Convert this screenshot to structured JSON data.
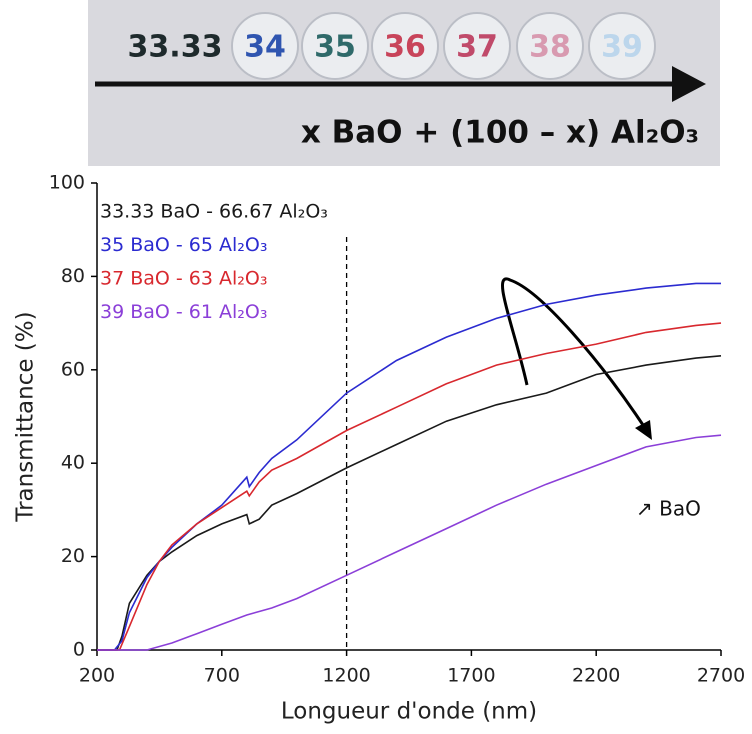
{
  "photo": {
    "labels": [
      "33.33",
      "34",
      "35",
      "36",
      "37",
      "38",
      "39"
    ],
    "colors": [
      "#1e2a2c",
      "#2f55b0",
      "#2f6a6a",
      "#c8445a",
      "#c04a6a",
      "#d89ab0",
      "#bcd6ec"
    ],
    "caption": "x BaO + (100 – x) Al₂O₃"
  },
  "chart_data": {
    "type": "line",
    "xlabel": "Longueur d'onde (nm)",
    "ylabel": "Transmittance (%)",
    "xlim": [
      200,
      2700
    ],
    "ylim": [
      0,
      100
    ],
    "xticks": [
      200,
      700,
      1200,
      1700,
      2200,
      2700
    ],
    "yticks": [
      0,
      20,
      40,
      60,
      80,
      100
    ],
    "vline": 1200,
    "annotation": "↗ BaO",
    "series": [
      {
        "name": "33.33 BaO - 66.67 Al₂O₃",
        "color": "#1a1a1a",
        "x": [
          200,
          280,
          300,
          330,
          400,
          450,
          500,
          600,
          700,
          800,
          810,
          850,
          900,
          1000,
          1200,
          1400,
          1600,
          1800,
          2000,
          2200,
          2400,
          2600,
          2700
        ],
        "values": [
          0,
          0,
          3,
          10,
          16,
          19,
          21,
          24.5,
          27,
          29,
          27,
          28,
          31,
          33.5,
          39,
          44,
          49,
          52.5,
          55,
          59,
          61,
          62.5,
          63
        ]
      },
      {
        "name": "35 BaO - 65 Al₂O₃",
        "color": "#2b2bd0",
        "x": [
          200,
          270,
          300,
          330,
          400,
          450,
          500,
          600,
          700,
          800,
          810,
          850,
          900,
          1000,
          1200,
          1400,
          1600,
          1800,
          2000,
          2200,
          2400,
          2600,
          2700
        ],
        "values": [
          0,
          0,
          2,
          8,
          15.5,
          19,
          22,
          27,
          31,
          37,
          35,
          38,
          41,
          45,
          55,
          62,
          67,
          71,
          74,
          76,
          77.5,
          78.5,
          78.5
        ]
      },
      {
        "name": "37 BaO - 63 Al₂O₃",
        "color": "#d8282e",
        "x": [
          200,
          290,
          330,
          400,
          450,
          500,
          600,
          700,
          800,
          810,
          850,
          900,
          1000,
          1200,
          1400,
          1600,
          1800,
          2000,
          2200,
          2400,
          2600,
          2700
        ],
        "values": [
          0,
          0,
          5,
          14,
          19,
          22.5,
          27,
          30.5,
          34,
          33,
          36,
          38.5,
          41,
          47,
          52,
          57,
          61,
          63.5,
          65.5,
          68,
          69.5,
          70
        ]
      },
      {
        "name": "39 BaO - 61 Al₂O₃",
        "color": "#8b3fd8",
        "x": [
          200,
          400,
          500,
          600,
          700,
          800,
          900,
          1000,
          1200,
          1400,
          1600,
          1800,
          2000,
          2200,
          2400,
          2600,
          2700
        ],
        "values": [
          0,
          0,
          1.5,
          3.5,
          5.5,
          7.5,
          9,
          11,
          16,
          21,
          26,
          31,
          35.5,
          39.5,
          43.5,
          45.5,
          46
        ]
      }
    ]
  }
}
